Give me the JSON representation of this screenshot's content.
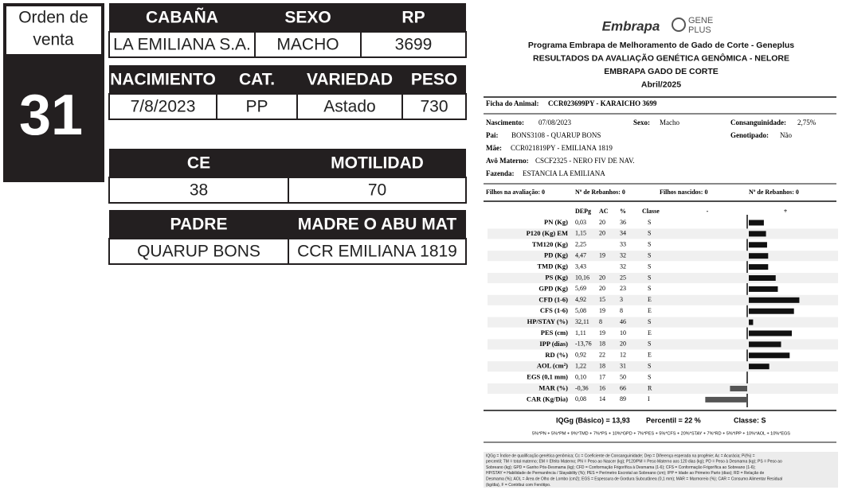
{
  "order": {
    "label_lines": [
      "Orden de",
      "venta"
    ],
    "number": "31"
  },
  "tables": [
    {
      "headers": [
        "CABAÑA",
        "SEXO",
        "RP"
      ],
      "values": [
        "LA EMILIANA S.A.",
        "MACHO",
        "3699"
      ]
    },
    {
      "headers": [
        "NACIMIENTO",
        "CAT.",
        "VARIEDAD",
        "PESO"
      ],
      "values": [
        "7/8/2023",
        "PP",
        "Astado",
        "730"
      ]
    },
    {
      "headers": [
        "CE",
        "MOTILIDAD"
      ],
      "values": [
        "38",
        "70"
      ]
    },
    {
      "headers": [
        "PADRE",
        "MADRE O ABU MAT"
      ],
      "values": [
        "QUARUP BONS",
        "CCR EMILIANA 1819"
      ]
    }
  ],
  "report": {
    "logo": "Embrapa",
    "logo2_lines": [
      "GENE",
      "PLUS"
    ],
    "title_lines": [
      "Programa Embrapa de Melhoramento de Gado de Corte - Geneplus",
      "RESULTADOS DA AVALIAÇÃO GENÉTICA GENÔMICA - NELORE",
      "EMBRAPA GADO DE CORTE",
      "Abril/2025"
    ],
    "animal": {
      "label": "Ficha do Animal:",
      "value": "CCR023699PY - KARAICHO 3699"
    },
    "fields": [
      [
        {
          "label": "Nascimento:",
          "value": "07/08/2023"
        },
        {
          "label": "Sexo:",
          "value": "Macho"
        },
        {
          "label": "Consanguinidade:",
          "value": "2,75%"
        }
      ],
      [
        {
          "label": "Pai:",
          "value": "BONS3108 - QUARUP BONS"
        },
        {
          "label": "Genotipado:",
          "value": "Não"
        }
      ],
      [
        {
          "label": "Mãe:",
          "value": "CCR021819PY - EMILIANA 1819"
        }
      ],
      [
        {
          "label": "Avô Materno:",
          "value": "CSCF2325 - NERO FIV DE NAV."
        }
      ],
      [
        {
          "label": "Fazenda:",
          "value": "ESTANCIA LA EMILIANA"
        }
      ]
    ],
    "counts": [
      "Filhos na avaliação: 0",
      "Nº de Rebanhos: 0",
      "Filhos nascidos: 0",
      "Nº de Rebanhos: 0"
    ],
    "columns": [
      "DEPg",
      "AC",
      "%",
      "Classe",
      "-",
      "+"
    ],
    "traits": [
      {
        "name": "PN (Kg)",
        "dep": "0,03",
        "ac": 20,
        "pct": 36,
        "classe": "S"
      },
      {
        "name": "P120 (Kg) EM",
        "dep": "1,15",
        "ac": 20,
        "pct": 34,
        "classe": "S"
      },
      {
        "name": "TM120 (Kg)",
        "dep": "2,25",
        "ac": null,
        "pct": 33,
        "classe": "S"
      },
      {
        "name": "PD (Kg)",
        "dep": "4,47",
        "ac": 19,
        "pct": 32,
        "classe": "S"
      },
      {
        "name": "TMD (Kg)",
        "dep": "3,43",
        "ac": null,
        "pct": 32,
        "classe": "S"
      },
      {
        "name": "PS (Kg)",
        "dep": "10,16",
        "ac": 20,
        "pct": 25,
        "classe": "S"
      },
      {
        "name": "GPD (Kg)",
        "dep": "5,69",
        "ac": 20,
        "pct": 23,
        "classe": "S"
      },
      {
        "name": "CFD (1-6)",
        "dep": "4,92",
        "ac": 15,
        "pct": 3,
        "classe": "E"
      },
      {
        "name": "CFS (1-6)",
        "dep": "5,08",
        "ac": 19,
        "pct": 8,
        "classe": "E"
      },
      {
        "name": "HP/STAY (%)",
        "dep": "32,11",
        "ac": 8,
        "pct": 46,
        "classe": "S"
      },
      {
        "name": "PES (cm)",
        "dep": "1,11",
        "ac": 19,
        "pct": 10,
        "classe": "E"
      },
      {
        "name": "IPP (dias)",
        "dep": "-13,76",
        "ac": 18,
        "pct": 20,
        "classe": "S"
      },
      {
        "name": "RD (%)",
        "dep": "0,92",
        "ac": 22,
        "pct": 12,
        "classe": "E"
      },
      {
        "name": "AOL (cm²)",
        "dep": "1,22",
        "ac": 18,
        "pct": 31,
        "classe": "S"
      },
      {
        "name": "EGS (0,1 mm)",
        "dep": "0,10",
        "ac": 17,
        "pct": 50,
        "classe": "S"
      },
      {
        "name": "MAR (%)",
        "dep": "-0,36",
        "ac": 16,
        "pct": 66,
        "classe": "R"
      },
      {
        "name": "CAR (Kg/Dia)",
        "dep": "0,08",
        "ac": 14,
        "pct": 89,
        "classe": "I"
      }
    ],
    "summary": [
      "IQGg (Básico) = 13,93",
      "Percentil = 22 %",
      "Classe: S"
    ],
    "formula": "5%*PN + 5%*PM + 9%*TMD + 7%*PS + 10%*GPD + 7%*PES + 5%*CFS + 20%*STAY + 7%*RD + 5%*IPP + 10%*AOL + 10%*EGS",
    "footnote_lines": [
      "IQGg = Índice de qualificação genética genômica; Cc = Coeficiente de Consanguinidade; Dep = Diferença esperada na progênie; Ac = Acurácia; Pi(%) =",
      "percentil; TM = total materno; EM = Efeito Materno; PN = Peso ao Nascer (kg); P120/PM = Peso Materno aos 120 dias (kg); PD = Peso à Desmama (kg); PS = Peso ao",
      "Sobreano (kg); GPD = Ganho Pós-Desmama (kg); CFD = Conformação Frigorífica à Desmama (1-6); CFS = Conformação Frigorífica ao Sobreano (1-6);",
      "HP/STAY = Habilidade de Permanência / Stayability (%); PES = Perímetro Escrotal ao Sobreano (cm); IPP = Idade ao Primeiro Parto (dias); RD = Relação de",
      "Desmama (%); AOL = Área de Olho de Lombo (cm2); EGS = Espessura de Gordura Subcutânea (0,1 mm); MAR = Marmoreio (%); CAR = Consumo Alimentar Residual",
      "(kg/dia), F = Contribui com Fenótipo."
    ]
  }
}
